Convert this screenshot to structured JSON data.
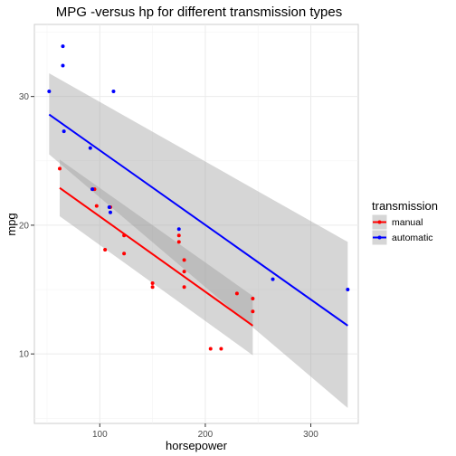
{
  "chart_data": {
    "type": "scatter",
    "title": "MPG -versus hp for different transmission types",
    "xlabel": "horsepower",
    "ylabel": "mpg",
    "xlim": [
      38,
      345
    ],
    "ylim": [
      4.6,
      35.6
    ],
    "x_ticks": [
      100,
      200,
      300
    ],
    "y_ticks": [
      10,
      20,
      30
    ],
    "grid": true,
    "legend": {
      "title": "transmission",
      "placement": "right"
    },
    "series": [
      {
        "name": "manual",
        "color": "#ff0000",
        "points": [
          [
            62,
            24.4
          ],
          [
            93,
            22.8
          ],
          [
            95,
            22.8
          ],
          [
            97,
            21.5
          ],
          [
            105,
            18.1
          ],
          [
            110,
            21.4
          ],
          [
            123,
            17.8
          ],
          [
            123,
            19.2
          ],
          [
            150,
            15.5
          ],
          [
            150,
            15.2
          ],
          [
            175,
            18.7
          ],
          [
            175,
            19.2
          ],
          [
            180,
            16.4
          ],
          [
            180,
            17.3
          ],
          [
            180,
            15.2
          ],
          [
            205,
            10.4
          ],
          [
            215,
            10.4
          ],
          [
            230,
            14.7
          ],
          [
            245,
            14.3
          ],
          [
            245,
            13.3
          ]
        ],
        "fit": {
          "x": [
            62,
            245
          ],
          "y": [
            22.9,
            12.2
          ]
        },
        "band": {
          "x": [
            62,
            245
          ],
          "upper": [
            25.1,
            14.5
          ],
          "lower": [
            20.7,
            9.9
          ]
        }
      },
      {
        "name": "automatic",
        "color": "#0000ff",
        "points": [
          [
            52,
            30.4
          ],
          [
            65,
            33.9
          ],
          [
            65,
            32.4
          ],
          [
            66,
            27.3
          ],
          [
            91,
            26.0
          ],
          [
            93,
            22.8
          ],
          [
            109,
            21.4
          ],
          [
            110,
            21.0
          ],
          [
            113,
            30.4
          ],
          [
            175,
            19.7
          ],
          [
            264,
            15.8
          ],
          [
            335,
            15.0
          ]
        ],
        "fit": {
          "x": [
            52,
            335
          ],
          "y": [
            28.6,
            12.2
          ]
        },
        "band": {
          "x": [
            52,
            335
          ],
          "upper": [
            31.8,
            18.7
          ],
          "lower": [
            25.5,
            5.8
          ]
        }
      }
    ]
  }
}
